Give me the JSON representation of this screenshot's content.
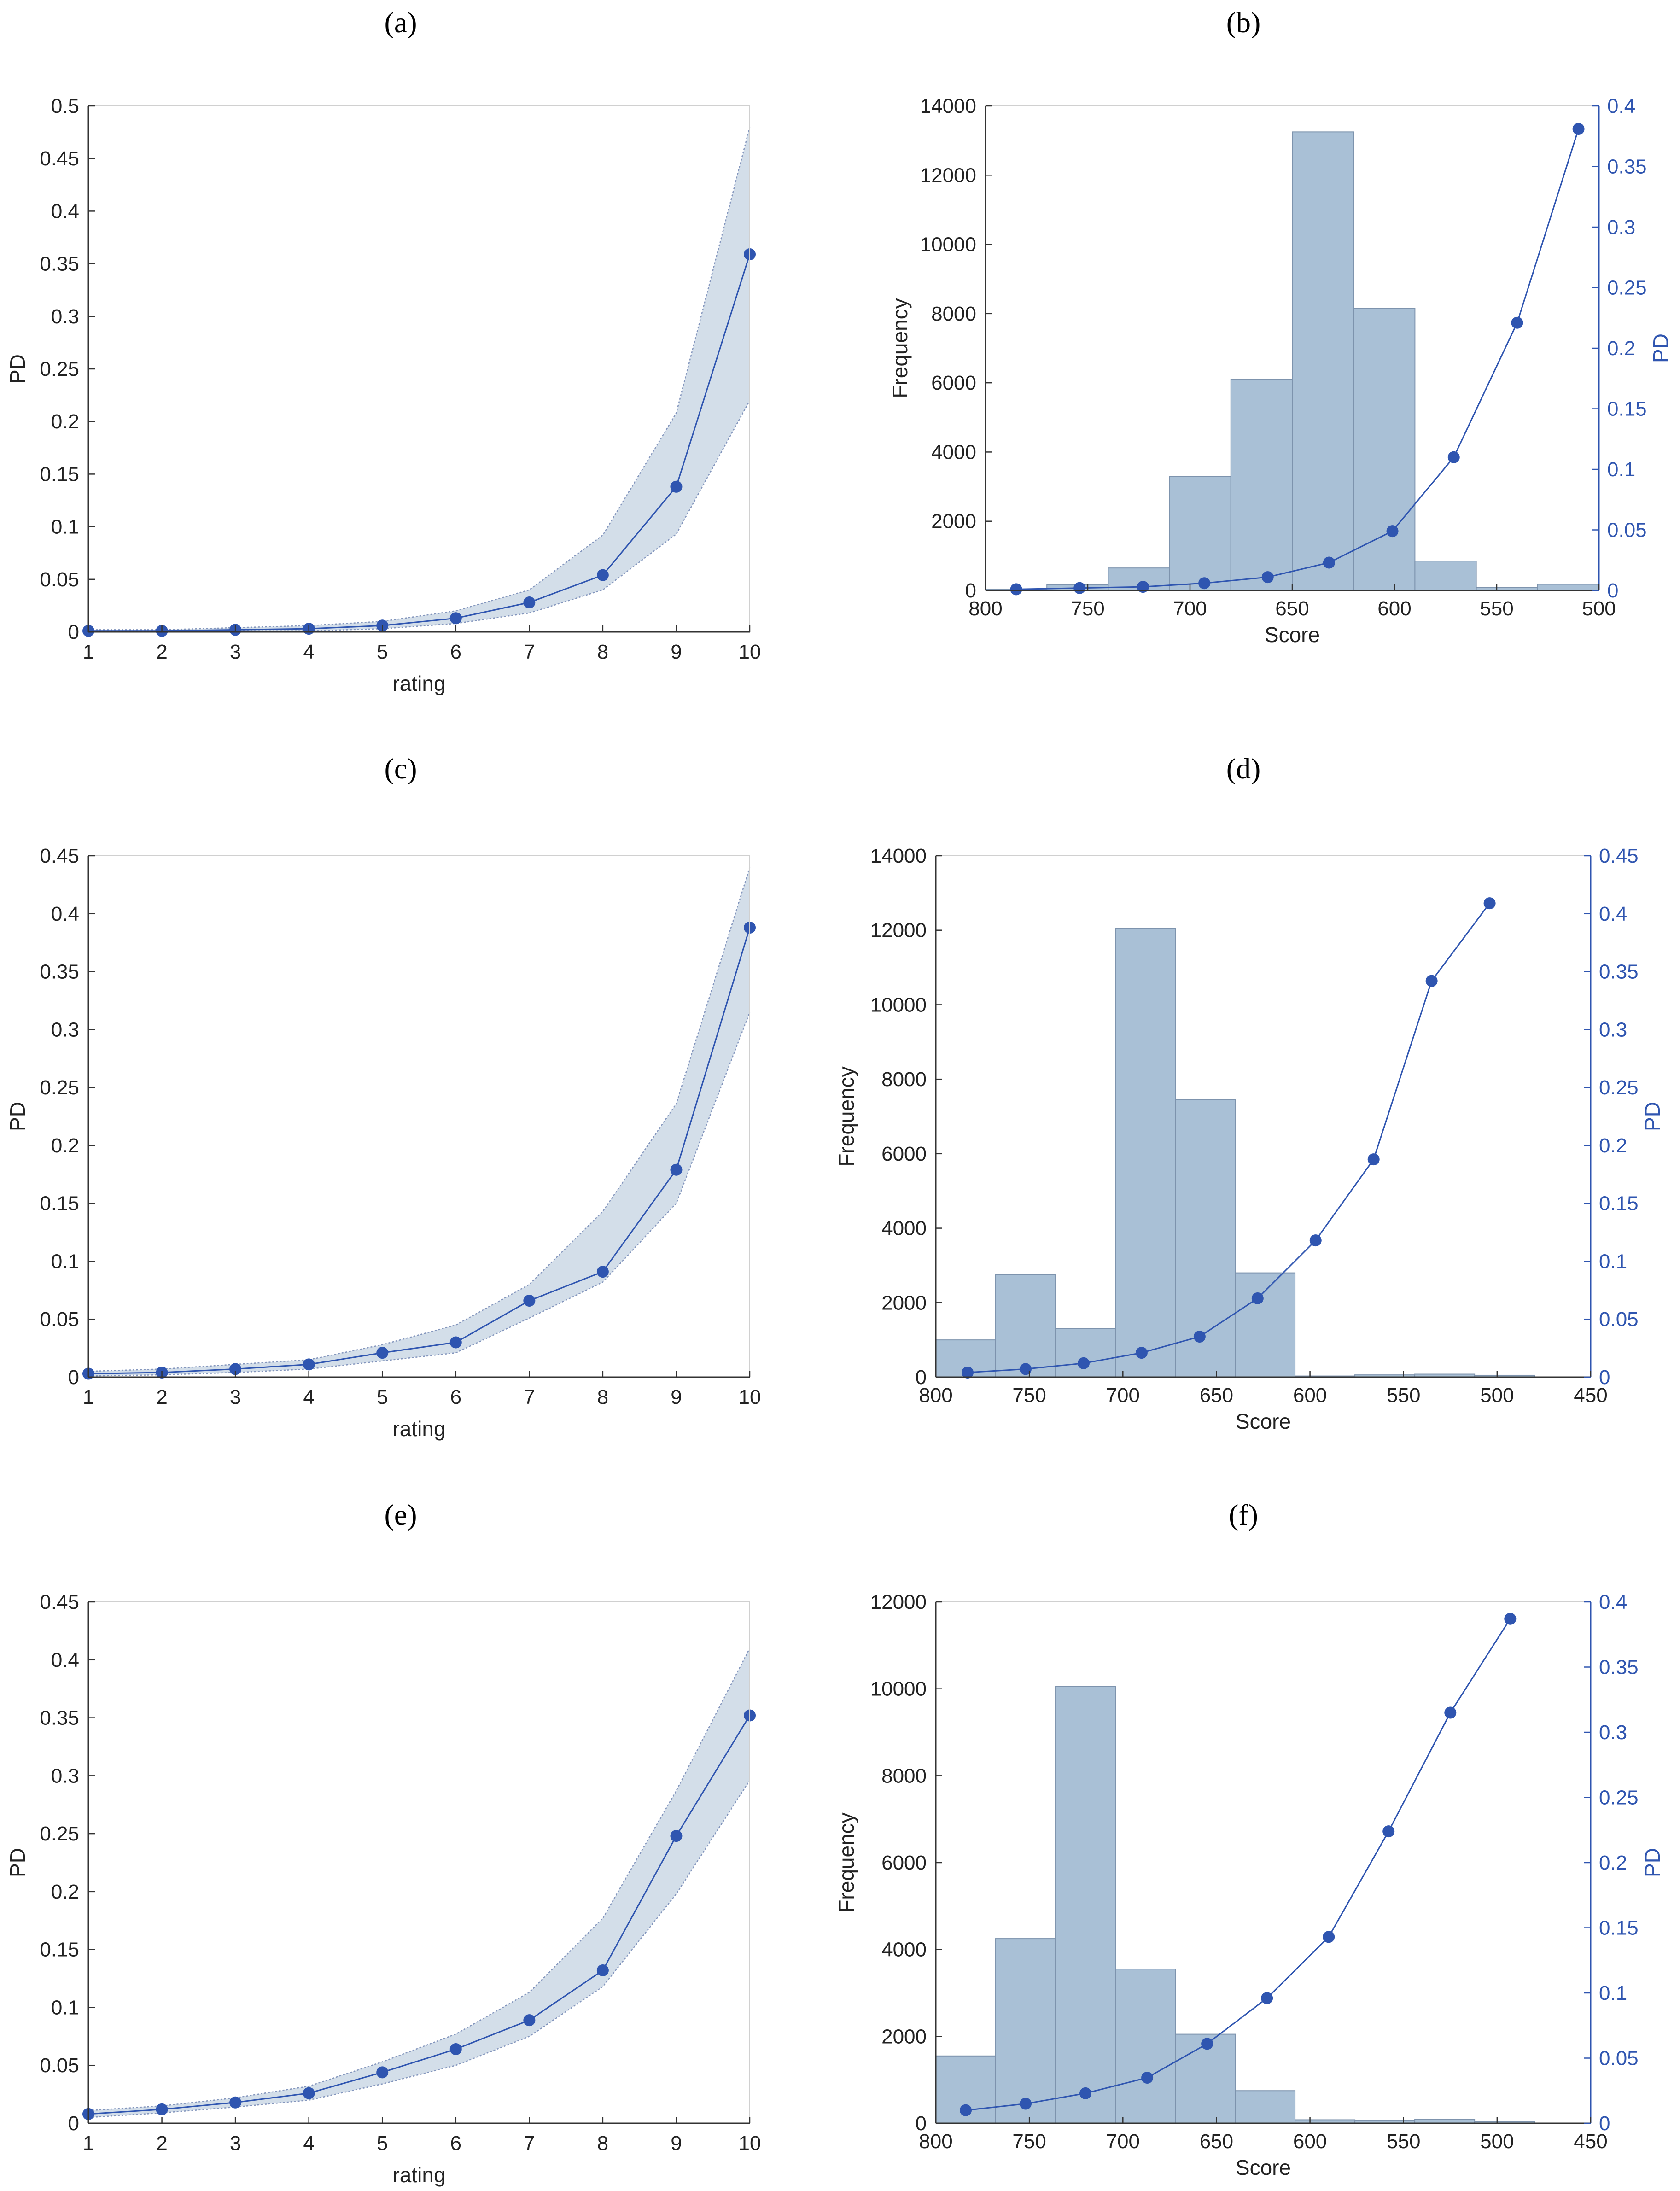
{
  "figure": {
    "panels": [
      "a",
      "b",
      "c",
      "d",
      "e",
      "f"
    ]
  },
  "colors": {
    "line": "#2f55b0",
    "marker": "#2f55b0",
    "band_fill": "#d3dee9",
    "band_edge": "#8496bd",
    "bar_fill": "#a9c0d6",
    "bar_edge": "#7d93ad",
    "axis": "#333333",
    "right_axis": "#2f55b0"
  },
  "chart_data": [
    {
      "id": "a",
      "panel_label": "(a)",
      "type": "line",
      "xlabel": "rating",
      "ylabel": "PD",
      "x": [
        1,
        2,
        3,
        4,
        5,
        6,
        7,
        8,
        9,
        10
      ],
      "xlim": [
        1,
        10
      ],
      "ylim": [
        0,
        0.5
      ],
      "xticks": [
        1,
        2,
        3,
        4,
        5,
        6,
        7,
        8,
        9,
        10
      ],
      "yticks": [
        0,
        0.05,
        0.1,
        0.15,
        0.2,
        0.25,
        0.3,
        0.35,
        0.4,
        0.45,
        0.5
      ],
      "ytick_labels": [
        "0",
        "0.05",
        "0.1",
        "0.15",
        "0.2",
        "0.25",
        "0.3",
        "0.35",
        "0.4",
        "0.45",
        "0.5"
      ],
      "series": [
        {
          "name": "PD",
          "values": [
            0.001,
            0.001,
            0.002,
            0.003,
            0.006,
            0.013,
            0.028,
            0.054,
            0.138,
            0.359
          ]
        }
      ],
      "band": {
        "lower": [
          0,
          0,
          0.001,
          0.001,
          0.003,
          0.008,
          0.018,
          0.04,
          0.093,
          0.22
        ],
        "upper": [
          0.002,
          0.002,
          0.004,
          0.006,
          0.01,
          0.02,
          0.04,
          0.092,
          0.208,
          0.48
        ]
      }
    },
    {
      "id": "b",
      "panel_label": "(b)",
      "type": "bar+line",
      "xlabel": "Score",
      "ylabel": "Frequency",
      "y2label": "PD",
      "xlim": [
        800,
        500
      ],
      "xticks": [
        800,
        750,
        700,
        650,
        600,
        550,
        500
      ],
      "xtick_labels": [
        "800",
        "750",
        "700",
        "650",
        "600",
        "550",
        "500"
      ],
      "ylim": [
        0,
        14000
      ],
      "yticks": [
        0,
        2000,
        4000,
        6000,
        8000,
        10000,
        12000,
        14000
      ],
      "ytick_labels": [
        "0",
        "2000",
        "4000",
        "6000",
        "8000",
        "10000",
        "12000",
        "14000"
      ],
      "y2lim": [
        0,
        0.4
      ],
      "y2ticks": [
        0,
        0.05,
        0.1,
        0.15,
        0.2,
        0.25,
        0.3,
        0.35,
        0.4
      ],
      "y2tick_labels": [
        "0",
        "0.05",
        "0.1",
        "0.15",
        "0.2",
        "0.25",
        "0.3",
        "0.35",
        "0.4"
      ],
      "bins": [
        [
          800,
          770
        ],
        [
          770,
          740
        ],
        [
          740,
          710
        ],
        [
          710,
          680
        ],
        [
          680,
          650
        ],
        [
          650,
          620
        ],
        [
          620,
          590
        ],
        [
          590,
          560
        ],
        [
          560,
          530
        ],
        [
          530,
          500
        ]
      ],
      "frequencies": [
        40,
        170,
        650,
        3300,
        6100,
        13250,
        8150,
        850,
        80,
        180
      ],
      "pd_x": [
        785,
        754,
        723,
        693,
        662,
        632,
        601,
        571,
        540,
        510
      ],
      "pd_values": [
        0.001,
        0.002,
        0.003,
        0.006,
        0.011,
        0.023,
        0.049,
        0.11,
        0.221,
        0.381
      ]
    },
    {
      "id": "c",
      "panel_label": "(c)",
      "type": "line",
      "xlabel": "rating",
      "ylabel": "PD",
      "x": [
        1,
        2,
        3,
        4,
        5,
        6,
        7,
        8,
        9,
        10
      ],
      "xlim": [
        1,
        10
      ],
      "ylim": [
        0,
        0.45
      ],
      "xticks": [
        1,
        2,
        3,
        4,
        5,
        6,
        7,
        8,
        9,
        10
      ],
      "yticks": [
        0,
        0.05,
        0.1,
        0.15,
        0.2,
        0.25,
        0.3,
        0.35,
        0.4,
        0.45
      ],
      "ytick_labels": [
        "0",
        "0.05",
        "0.1",
        "0.15",
        "0.2",
        "0.25",
        "0.3",
        "0.35",
        "0.4",
        "0.45"
      ],
      "series": [
        {
          "name": "PD",
          "values": [
            0.003,
            0.004,
            0.007,
            0.011,
            0.021,
            0.03,
            0.066,
            0.091,
            0.179,
            0.388
          ]
        }
      ],
      "band": {
        "lower": [
          0.001,
          0.002,
          0.004,
          0.007,
          0.014,
          0.021,
          0.051,
          0.082,
          0.15,
          0.315
        ],
        "upper": [
          0.005,
          0.007,
          0.011,
          0.015,
          0.028,
          0.045,
          0.08,
          0.143,
          0.236,
          0.44
        ]
      }
    },
    {
      "id": "d",
      "panel_label": "(d)",
      "type": "bar+line",
      "xlabel": "Score",
      "ylabel": "Frequency",
      "y2label": "PD",
      "xlim": [
        800,
        450
      ],
      "xticks": [
        800,
        750,
        700,
        650,
        600,
        550,
        500,
        450
      ],
      "xtick_labels": [
        "800",
        "750",
        "700",
        "650",
        "600",
        "550",
        "500",
        "450"
      ],
      "ylim": [
        0,
        14000
      ],
      "yticks": [
        0,
        2000,
        4000,
        6000,
        8000,
        10000,
        12000,
        14000
      ],
      "ytick_labels": [
        "0",
        "2000",
        "4000",
        "6000",
        "8000",
        "10000",
        "12000",
        "14000"
      ],
      "y2lim": [
        0,
        0.45
      ],
      "y2ticks": [
        0,
        0.05,
        0.1,
        0.15,
        0.2,
        0.25,
        0.3,
        0.35,
        0.4,
        0.45
      ],
      "y2tick_labels": [
        "0",
        "0.05",
        "0.1",
        "0.15",
        "0.2",
        "0.25",
        "0.3",
        "0.35",
        "0.4",
        "0.45"
      ],
      "bins": [
        [
          800,
          768
        ],
        [
          768,
          736
        ],
        [
          736,
          704
        ],
        [
          704,
          672
        ],
        [
          672,
          640
        ],
        [
          640,
          608
        ],
        [
          608,
          576
        ],
        [
          576,
          544
        ],
        [
          544,
          512
        ],
        [
          512,
          480
        ]
      ],
      "frequencies": [
        1000,
        2750,
        1300,
        12050,
        7450,
        2800,
        30,
        60,
        80,
        50
      ],
      "pd_x": [
        783,
        752,
        721,
        690,
        659,
        628,
        597,
        566,
        535,
        504
      ],
      "pd_values": [
        0.004,
        0.007,
        0.012,
        0.021,
        0.035,
        0.068,
        0.118,
        0.188,
        0.342,
        0.409
      ]
    },
    {
      "id": "e",
      "panel_label": "(e)",
      "type": "line",
      "xlabel": "rating",
      "ylabel": "PD",
      "x": [
        1,
        2,
        3,
        4,
        5,
        6,
        7,
        8,
        9,
        10
      ],
      "xlim": [
        1,
        10
      ],
      "ylim": [
        0,
        0.45
      ],
      "xticks": [
        1,
        2,
        3,
        4,
        5,
        6,
        7,
        8,
        9,
        10
      ],
      "yticks": [
        0,
        0.05,
        0.1,
        0.15,
        0.2,
        0.25,
        0.3,
        0.35,
        0.4,
        0.45
      ],
      "ytick_labels": [
        "0",
        "0.05",
        "0.1",
        "0.15",
        "0.2",
        "0.25",
        "0.3",
        "0.35",
        "0.4",
        "0.45"
      ],
      "series": [
        {
          "name": "PD",
          "values": [
            0.008,
            0.012,
            0.018,
            0.026,
            0.044,
            0.064,
            0.089,
            0.132,
            0.248,
            0.352
          ]
        }
      ],
      "band": {
        "lower": [
          0.005,
          0.009,
          0.014,
          0.02,
          0.034,
          0.05,
          0.075,
          0.118,
          0.198,
          0.296
        ],
        "upper": [
          0.011,
          0.015,
          0.022,
          0.032,
          0.053,
          0.077,
          0.113,
          0.177,
          0.287,
          0.41
        ]
      }
    },
    {
      "id": "f",
      "panel_label": "(f)",
      "type": "bar+line",
      "xlabel": "Score",
      "ylabel": "Frequency",
      "y2label": "PD",
      "xlim": [
        800,
        450
      ],
      "xticks": [
        800,
        750,
        700,
        650,
        600,
        550,
        500,
        450
      ],
      "xtick_labels": [
        "800",
        "750",
        "700",
        "650",
        "600",
        "550",
        "500",
        "450"
      ],
      "ylim": [
        0,
        12000
      ],
      "yticks": [
        0,
        2000,
        4000,
        6000,
        8000,
        10000,
        12000
      ],
      "ytick_labels": [
        "0",
        "2000",
        "4000",
        "6000",
        "8000",
        "10000",
        "12000"
      ],
      "y2lim": [
        0,
        0.4
      ],
      "y2ticks": [
        0,
        0.05,
        0.1,
        0.15,
        0.2,
        0.25,
        0.3,
        0.35,
        0.4
      ],
      "y2tick_labels": [
        "0",
        "0.05",
        "0.1",
        "0.15",
        "0.2",
        "0.25",
        "0.3",
        "0.35",
        "0.4"
      ],
      "bins": [
        [
          800,
          768
        ],
        [
          768,
          736
        ],
        [
          736,
          704
        ],
        [
          704,
          672
        ],
        [
          672,
          640
        ],
        [
          640,
          608
        ],
        [
          608,
          576
        ],
        [
          576,
          544
        ],
        [
          544,
          512
        ],
        [
          512,
          480
        ]
      ],
      "frequencies": [
        1550,
        4250,
        10050,
        3550,
        2050,
        750,
        80,
        70,
        90,
        40
      ],
      "pd_x": [
        784,
        752,
        720,
        687,
        655,
        623,
        590,
        558,
        525,
        493
      ],
      "pd_values": [
        0.01,
        0.015,
        0.023,
        0.035,
        0.061,
        0.096,
        0.143,
        0.224,
        0.315,
        0.387
      ]
    }
  ]
}
